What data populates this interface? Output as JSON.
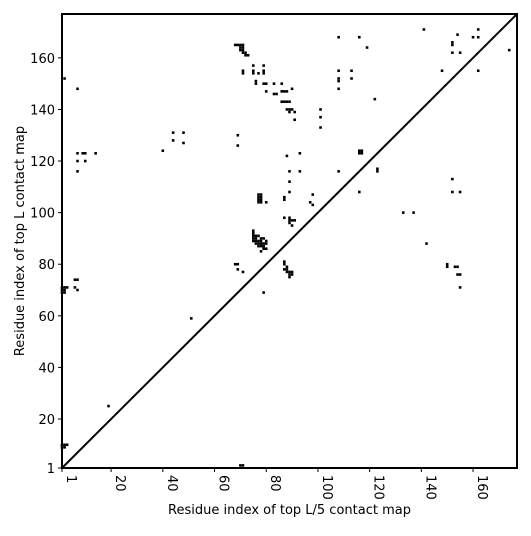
{
  "chart_data": {
    "type": "scatter",
    "title": "",
    "xlabel": "Residue index of top L/5 contact map",
    "ylabel": "Residue index of top L contact map",
    "xlim": [
      1,
      177
    ],
    "ylim": [
      1,
      177
    ],
    "xticks": [
      1,
      20,
      40,
      60,
      80,
      100,
      120,
      140,
      160
    ],
    "yticks": [
      1,
      20,
      40,
      60,
      80,
      100,
      120,
      140,
      160
    ],
    "xtick_labels": [
      "1",
      "20",
      "40",
      "60",
      "80",
      "100",
      "120",
      "140",
      "160"
    ],
    "ytick_labels": [
      "1",
      "20",
      "40",
      "60",
      "80",
      "100",
      "120",
      "140",
      "160"
    ],
    "xtick_rotation": 90,
    "grid": false,
    "diagonal_line": [
      [
        1,
        1
      ],
      [
        177,
        177
      ]
    ],
    "marker": "square",
    "marker_color": "#000000",
    "points": [
      [
        2,
        152
      ],
      [
        7,
        148
      ],
      [
        7,
        123
      ],
      [
        7,
        120
      ],
      [
        7,
        116
      ],
      [
        9,
        123
      ],
      [
        10,
        123
      ],
      [
        10,
        120
      ],
      [
        14,
        123
      ],
      [
        40,
        124
      ],
      [
        44,
        131
      ],
      [
        44,
        128
      ],
      [
        48,
        131
      ],
      [
        48,
        127
      ],
      [
        51,
        59
      ],
      [
        68,
        165
      ],
      [
        69,
        165
      ],
      [
        70,
        165
      ],
      [
        71,
        165
      ],
      [
        70,
        164
      ],
      [
        71,
        164
      ],
      [
        70,
        163
      ],
      [
        71,
        163
      ],
      [
        72,
        162
      ],
      [
        71,
        162
      ],
      [
        72,
        161
      ],
      [
        73,
        161
      ],
      [
        69,
        130
      ],
      [
        69,
        126
      ],
      [
        71,
        155
      ],
      [
        71,
        154
      ],
      [
        75,
        157
      ],
      [
        75,
        155
      ],
      [
        75,
        154
      ],
      [
        77,
        154
      ],
      [
        79,
        157
      ],
      [
        79,
        155
      ],
      [
        79,
        154
      ],
      [
        76,
        151
      ],
      [
        76,
        150
      ],
      [
        79,
        150
      ],
      [
        80,
        150
      ],
      [
        80,
        147
      ],
      [
        83,
        150
      ],
      [
        83,
        146
      ],
      [
        84,
        146
      ],
      [
        86,
        150
      ],
      [
        86,
        147
      ],
      [
        87,
        147
      ],
      [
        88,
        147
      ],
      [
        86,
        143
      ],
      [
        87,
        143
      ],
      [
        88,
        143
      ],
      [
        89,
        143
      ],
      [
        88,
        140
      ],
      [
        89,
        140
      ],
      [
        90,
        140
      ],
      [
        89,
        139
      ],
      [
        91,
        139
      ],
      [
        91,
        136
      ],
      [
        90,
        148
      ],
      [
        77,
        107
      ],
      [
        78,
        107
      ],
      [
        77,
        106
      ],
      [
        78,
        106
      ],
      [
        77,
        105
      ],
      [
        78,
        105
      ],
      [
        77,
        104
      ],
      [
        78,
        104
      ],
      [
        80,
        104
      ],
      [
        75,
        93
      ],
      [
        75,
        92
      ],
      [
        75,
        91
      ],
      [
        76,
        91
      ],
      [
        77,
        91
      ],
      [
        75,
        90
      ],
      [
        76,
        90
      ],
      [
        78,
        90
      ],
      [
        79,
        90
      ],
      [
        75,
        89
      ],
      [
        76,
        89
      ],
      [
        77,
        89
      ],
      [
        78,
        89
      ],
      [
        80,
        89
      ],
      [
        76,
        88
      ],
      [
        77,
        88
      ],
      [
        78,
        88
      ],
      [
        79,
        88
      ],
      [
        80,
        88
      ],
      [
        77,
        87
      ],
      [
        78,
        87
      ],
      [
        79,
        87
      ],
      [
        79,
        86
      ],
      [
        80,
        86
      ],
      [
        78,
        85
      ],
      [
        68,
        80
      ],
      [
        69,
        80
      ],
      [
        69,
        78
      ],
      [
        71,
        77
      ],
      [
        79,
        69
      ],
      [
        87,
        81
      ],
      [
        87,
        80
      ],
      [
        88,
        79
      ],
      [
        87,
        78
      ],
      [
        88,
        78
      ],
      [
        88,
        77
      ],
      [
        89,
        77
      ],
      [
        90,
        77
      ],
      [
        89,
        76
      ],
      [
        90,
        76
      ],
      [
        89,
        75
      ],
      [
        88,
        122
      ],
      [
        93,
        123
      ],
      [
        89,
        116
      ],
      [
        93,
        116
      ],
      [
        89,
        112
      ],
      [
        89,
        108
      ],
      [
        87,
        106
      ],
      [
        87,
        105
      ],
      [
        87,
        98
      ],
      [
        89,
        98
      ],
      [
        89,
        97
      ],
      [
        90,
        97
      ],
      [
        91,
        97
      ],
      [
        89,
        96
      ],
      [
        90,
        95
      ],
      [
        98,
        107
      ],
      [
        97,
        104
      ],
      [
        98,
        103
      ],
      [
        101,
        140
      ],
      [
        101,
        137
      ],
      [
        101,
        133
      ],
      [
        108,
        168
      ],
      [
        108,
        155
      ],
      [
        108,
        152
      ],
      [
        108,
        151
      ],
      [
        108,
        148
      ],
      [
        113,
        155
      ],
      [
        113,
        152
      ],
      [
        108,
        116
      ],
      [
        116,
        168
      ],
      [
        119,
        164
      ],
      [
        116,
        124
      ],
      [
        117,
        124
      ],
      [
        116,
        123
      ],
      [
        117,
        123
      ],
      [
        116,
        108
      ],
      [
        122,
        144
      ],
      [
        123,
        117
      ],
      [
        123,
        116
      ],
      [
        133,
        100
      ],
      [
        137,
        100
      ],
      [
        141,
        171
      ],
      [
        142,
        88
      ],
      [
        148,
        155
      ],
      [
        152,
        166
      ],
      [
        152,
        165
      ],
      [
        154,
        169
      ],
      [
        152,
        162
      ],
      [
        155,
        162
      ],
      [
        152,
        113
      ],
      [
        152,
        108
      ],
      [
        155,
        108
      ],
      [
        150,
        80
      ],
      [
        150,
        79
      ],
      [
        153,
        79
      ],
      [
        154,
        79
      ],
      [
        154,
        76
      ],
      [
        155,
        76
      ],
      [
        155,
        71
      ],
      [
        160,
        168
      ],
      [
        162,
        171
      ],
      [
        162,
        168
      ],
      [
        162,
        155
      ],
      [
        174,
        163
      ],
      [
        1,
        71
      ],
      [
        2,
        71
      ],
      [
        3,
        71
      ],
      [
        1,
        70
      ],
      [
        2,
        70
      ],
      [
        1,
        69
      ],
      [
        2,
        69
      ],
      [
        6,
        74
      ],
      [
        7,
        74
      ],
      [
        6,
        71
      ],
      [
        7,
        70
      ],
      [
        1,
        10
      ],
      [
        2,
        10
      ],
      [
        3,
        10
      ],
      [
        1,
        9
      ],
      [
        2,
        9
      ],
      [
        19,
        25
      ],
      [
        70,
        2
      ],
      [
        71,
        2
      ]
    ]
  }
}
